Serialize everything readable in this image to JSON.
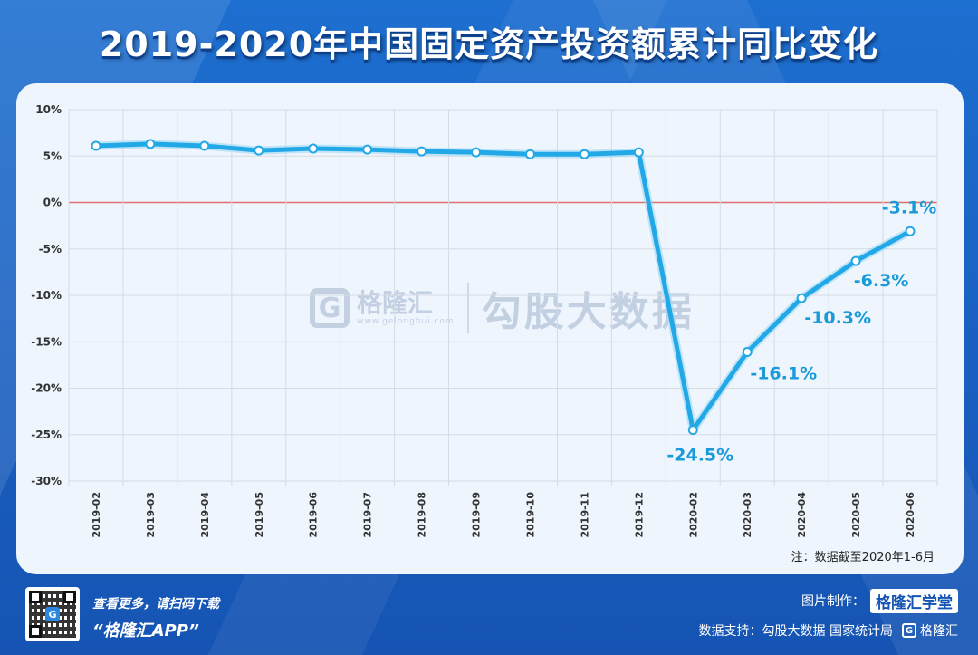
{
  "title": "2019-2020年中国固定资产投资额累计同比变化",
  "note": "注：数据截至2020年1-6月",
  "watermark": {
    "logo_letter": "G",
    "brand": "格隆汇",
    "url": "www.gelonghui.com",
    "text": "勾股大数据"
  },
  "footer": {
    "scan_text": "查看更多，请扫码下载",
    "app_text": "“格隆汇APP”",
    "credit_label": "图片制作：",
    "credit_brand": "格隆汇学堂",
    "source_text": "数据支持：勾股大数据  国家统计局",
    "corner_logo": "格隆汇",
    "qr_center": "G"
  },
  "colors": {
    "line": "#22a8e6",
    "zero_line": "#e07070",
    "label": "#1a9ad8"
  },
  "chart_data": {
    "type": "line",
    "title": "2019-2020年中国固定资产投资额累计同比变化",
    "x": [
      "2019-02",
      "2019-03",
      "2019-04",
      "2019-05",
      "2019-06",
      "2019-07",
      "2019-08",
      "2019-09",
      "2019-10",
      "2019-11",
      "2019-12",
      "2020-02",
      "2020-03",
      "2020-04",
      "2020-05",
      "2020-06"
    ],
    "series": [
      {
        "values": [
          6.1,
          6.3,
          6.1,
          5.6,
          5.8,
          5.7,
          5.5,
          5.4,
          5.2,
          5.2,
          5.4,
          -24.5,
          -16.1,
          -10.3,
          -6.3,
          -3.1
        ]
      }
    ],
    "data_labels": [
      {
        "index": 11,
        "text": "-24.5%"
      },
      {
        "index": 12,
        "text": "-16.1%"
      },
      {
        "index": 13,
        "text": "-10.3%"
      },
      {
        "index": 14,
        "text": "-6.3%"
      },
      {
        "index": 15,
        "text": "-3.1%"
      }
    ],
    "yticks": [
      "10%",
      "5%",
      "0%",
      "-5%",
      "-10%",
      "-15%",
      "-20%",
      "-25%",
      "-30%"
    ],
    "ylim": [
      -30,
      10
    ],
    "grid": true,
    "legend": "none"
  }
}
